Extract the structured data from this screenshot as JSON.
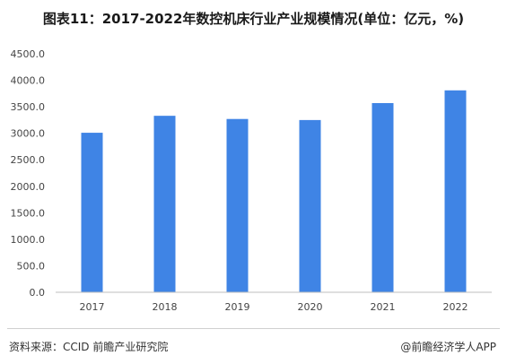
{
  "title": "图表11：2017-2022年数控机床行业产业规模情况(单位：亿元，%)",
  "chart_data": {
    "type": "bar",
    "categories": [
      "2017",
      "2018",
      "2019",
      "2020",
      "2021",
      "2022"
    ],
    "values": [
      3010,
      3330,
      3270,
      3250,
      3570,
      3810
    ],
    "ylim": [
      0,
      4500
    ],
    "yticks": [
      "0.0",
      "500.0",
      "1000.0",
      "1500.0",
      "2000.0",
      "2500.0",
      "3000.0",
      "3500.0",
      "4000.0",
      "4500.0"
    ],
    "bar_color": "#3f84e5",
    "grid": false,
    "legend": "none"
  },
  "footer": {
    "source": "资料来源：CCID 前瞻产业研究院",
    "brand": "@前瞻经济学人APP"
  }
}
